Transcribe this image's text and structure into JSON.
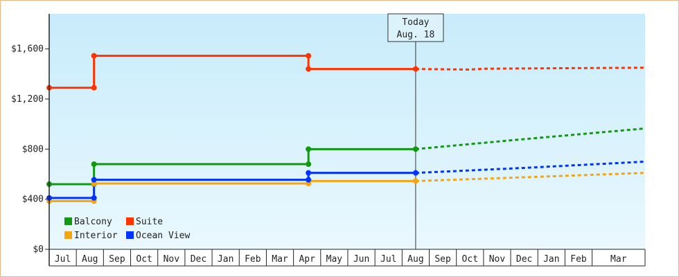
{
  "chart_data": {
    "type": "line",
    "y_ticks": [
      {
        "value": 0,
        "label": "$0"
      },
      {
        "value": 400,
        "label": "$400"
      },
      {
        "value": 800,
        "label": "$800"
      },
      {
        "value": 1200,
        "label": "$1,200"
      },
      {
        "value": 1600,
        "label": "$1,600"
      }
    ],
    "ylim": [
      0,
      1880
    ],
    "x_months": [
      "Jul",
      "Aug",
      "Sep",
      "Oct",
      "Nov",
      "Dec",
      "Jan",
      "Feb",
      "Mar",
      "Apr",
      "May",
      "Jun",
      "Jul",
      "Aug",
      "Sep",
      "Oct",
      "Nov",
      "Dec",
      "Jan",
      "Feb",
      "Mar"
    ],
    "xlim": [
      -0.5,
      21.45
    ],
    "today": {
      "line1": "Today",
      "line2": "Aug. 18",
      "x": 13.0
    },
    "legend_placement": "bottom-left",
    "series": [
      {
        "name": "Balcony",
        "color": "#119911",
        "history": [
          [
            -0.5,
            520
          ],
          [
            1.15,
            520
          ],
          [
            1.15,
            680
          ],
          [
            9.05,
            680
          ],
          [
            9.05,
            800
          ],
          [
            13.0,
            800
          ]
        ],
        "forecast": [
          [
            13.0,
            800
          ],
          [
            16.5,
            870
          ],
          [
            21.45,
            965
          ]
        ]
      },
      {
        "name": "Suite",
        "color": "#ff3300",
        "history": [
          [
            -0.5,
            1290
          ],
          [
            1.15,
            1290
          ],
          [
            1.15,
            1545
          ],
          [
            9.05,
            1545
          ],
          [
            9.05,
            1440
          ],
          [
            13.0,
            1440
          ]
        ],
        "forecast": [
          [
            13.0,
            1440
          ],
          [
            15.0,
            1435
          ],
          [
            15.5,
            1442
          ],
          [
            21.45,
            1450
          ]
        ]
      },
      {
        "name": "Interior",
        "color": "#f5a511",
        "history": [
          [
            -0.5,
            385
          ],
          [
            1.15,
            385
          ],
          [
            1.15,
            525
          ],
          [
            9.05,
            525
          ],
          [
            9.05,
            545
          ],
          [
            13.0,
            545
          ]
        ],
        "forecast": [
          [
            13.0,
            545
          ],
          [
            17.0,
            575
          ],
          [
            21.45,
            610
          ]
        ]
      },
      {
        "name": "Ocean View",
        "color": "#0033ff",
        "history": [
          [
            -0.5,
            410
          ],
          [
            1.15,
            410
          ],
          [
            1.15,
            555
          ],
          [
            9.05,
            555
          ],
          [
            9.05,
            610
          ],
          [
            13.0,
            610
          ]
        ],
        "forecast": [
          [
            13.0,
            610
          ],
          [
            17.0,
            650
          ],
          [
            21.45,
            700
          ]
        ]
      }
    ],
    "markers": {
      "Balcony": [
        [
          -0.5,
          520
        ],
        [
          1.15,
          520
        ],
        [
          1.15,
          680
        ],
        [
          9.05,
          680
        ],
        [
          9.05,
          800
        ],
        [
          13.0,
          800
        ]
      ],
      "Suite": [
        [
          -0.5,
          1290
        ],
        [
          1.15,
          1290
        ],
        [
          1.15,
          1545
        ],
        [
          9.05,
          1545
        ],
        [
          9.05,
          1440
        ],
        [
          13.0,
          1440
        ]
      ],
      "Interior": [
        [
          -0.5,
          385
        ],
        [
          1.15,
          385
        ],
        [
          1.15,
          525
        ],
        [
          9.05,
          525
        ],
        [
          13.0,
          545
        ]
      ],
      "Ocean View": [
        [
          -0.5,
          410
        ],
        [
          1.15,
          410
        ],
        [
          1.15,
          555
        ],
        [
          9.05,
          555
        ],
        [
          9.05,
          610
        ],
        [
          13.0,
          610
        ]
      ]
    },
    "legend": [
      {
        "name": "Balcony",
        "color": "#119911"
      },
      {
        "name": "Suite",
        "color": "#ff3300"
      },
      {
        "name": "Interior",
        "color": "#f5a511"
      },
      {
        "name": "Ocean View",
        "color": "#0033ff"
      }
    ]
  }
}
